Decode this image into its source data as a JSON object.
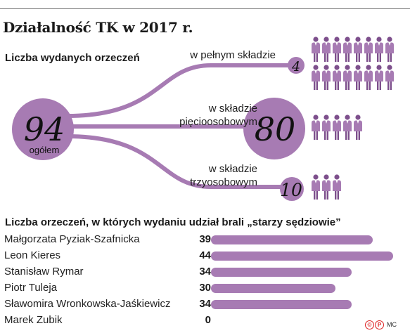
{
  "title": "Działalność TK w 2017 r.",
  "section1": {
    "subtitle": "Liczba wydanych orzeczeń",
    "total": {
      "value": "94",
      "label": "ogółem"
    },
    "branches": [
      {
        "label": "w pełnym składzie",
        "value": "4",
        "icons": 16
      },
      {
        "label": "w składzie pięcioosobowym",
        "value": "80",
        "icons": 5
      },
      {
        "label": "w składzie trzyosobowym",
        "value": "10",
        "icons": 3
      }
    ]
  },
  "section2": {
    "subtitle": "Liczba orzeczeń, w których wydaniu udział brali „starzy sędziowie”"
  },
  "colors": {
    "accent": "#a77bb3",
    "dark": "#7d4f8c",
    "shirt": "#ffffff"
  },
  "icon_name": "judge-person-icon",
  "chart_data": {
    "type": "bar",
    "orientation": "horizontal",
    "categories": [
      "Małgorzata Pyziak-Szafnicka",
      "Leon Kieres",
      "Stanisław Rymar",
      "Piotr Tuleja",
      "Sławomira Wronkowska-Jaśkiewicz",
      "Marek Zubik"
    ],
    "values": [
      39,
      44,
      34,
      30,
      34,
      0
    ],
    "title": "Liczba orzeczeń, w których wydaniu udział brali „starzy sędziowie”",
    "xlim": [
      0,
      44
    ],
    "grid": false,
    "color": "#a77bb3"
  },
  "footer": {
    "agency": "MC"
  }
}
